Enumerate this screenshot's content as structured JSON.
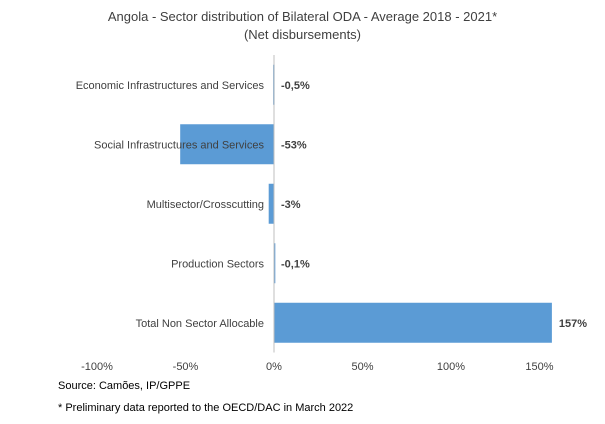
{
  "chart_data": {
    "type": "bar",
    "orientation": "horizontal",
    "title": "Angola - Sector distribution of Bilateral ODA - Average 2018 - 2021*",
    "subtitle": "(Net disbursements)",
    "categories": [
      "Economic Infrastructures and Services",
      "Social Infrastructures and Services",
      "Multisector/Crosscutting",
      "Production Sectors",
      "Total Non Sector Allocable"
    ],
    "values": [
      -0.5,
      -53,
      -3,
      -0.1,
      157
    ],
    "data_labels": [
      "-0,5%",
      "-53%",
      "-3%",
      "-0,1%",
      "157%"
    ],
    "xlim": [
      -100,
      160
    ],
    "xticks": [
      -100,
      -50,
      0,
      50,
      100,
      150
    ],
    "xtick_labels": [
      "-100%",
      "-50%",
      "0%",
      "50%",
      "100%",
      "150%"
    ],
    "bar_color": "#5b9bd5",
    "grid": false,
    "legend": "none"
  },
  "notes": {
    "source": "Source: Camões, IP/GPPE",
    "footnote": "* Preliminary data reported to the OECD/DAC in March 2022"
  }
}
